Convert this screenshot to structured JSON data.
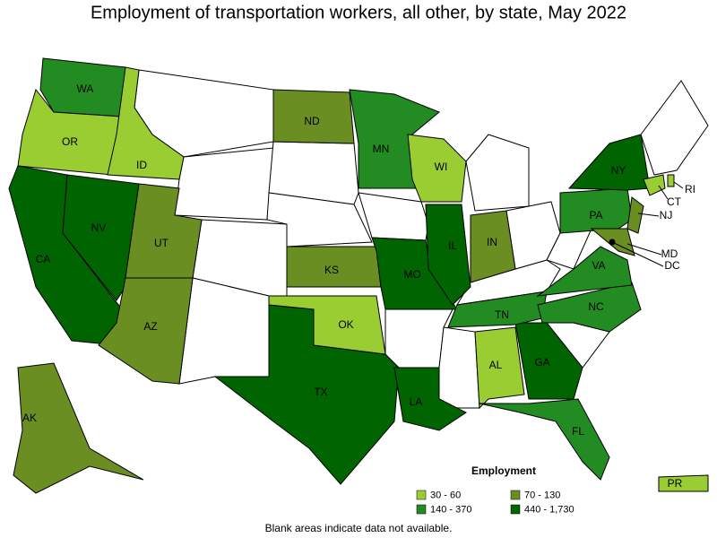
{
  "title": "Employment of transportation workers, all other, by state, May 2022",
  "legend": {
    "title": "Employment",
    "items": [
      {
        "label": "30 - 60",
        "color": "#9acd32"
      },
      {
        "label": "70 - 130",
        "color": "#6b8e23"
      },
      {
        "label": "140 - 370",
        "color": "#228b22"
      },
      {
        "label": "440 - 1,730",
        "color": "#006400"
      }
    ]
  },
  "states": [
    {
      "label": "WA",
      "color": "#228b22"
    },
    {
      "label": "OR",
      "color": "#9acd32"
    },
    {
      "label": "ID",
      "color": "#9acd32"
    },
    {
      "label": "CA",
      "color": "#006400"
    },
    {
      "label": "NV",
      "color": "#006400"
    },
    {
      "label": "UT",
      "color": "#6b8e23"
    },
    {
      "label": "AZ",
      "color": "#6b8e23"
    },
    {
      "label": "ND",
      "color": "#6b8e23"
    },
    {
      "label": "MN",
      "color": "#228b22"
    },
    {
      "label": "WI",
      "color": "#9acd32"
    },
    {
      "label": "KS",
      "color": "#6b8e23"
    },
    {
      "label": "MO",
      "color": "#006400"
    },
    {
      "label": "IL",
      "color": "#006400"
    },
    {
      "label": "IN",
      "color": "#6b8e23"
    },
    {
      "label": "TX",
      "color": "#006400"
    },
    {
      "label": "OK",
      "color": "#9acd32"
    },
    {
      "label": "LA",
      "color": "#006400"
    },
    {
      "label": "AL",
      "color": "#9acd32"
    },
    {
      "label": "GA",
      "color": "#006400"
    },
    {
      "label": "FL",
      "color": "#228b22"
    },
    {
      "label": "TN",
      "color": "#228b22"
    },
    {
      "label": "NC",
      "color": "#228b22"
    },
    {
      "label": "VA",
      "color": "#228b22"
    },
    {
      "label": "PA",
      "color": "#228b22"
    },
    {
      "label": "NY",
      "color": "#006400"
    },
    {
      "label": "NJ",
      "color": "#6b8e23"
    },
    {
      "label": "MD",
      "color": "#6b8e23"
    },
    {
      "label": "DC",
      "color": "#006400"
    },
    {
      "label": "CT",
      "color": "#9acd32"
    },
    {
      "label": "RI",
      "color": "#9acd32"
    },
    {
      "label": "AK",
      "color": "#6b8e23"
    },
    {
      "label": "PR",
      "color": "#9acd32"
    }
  ],
  "note": "Blank areas indicate data not available."
}
